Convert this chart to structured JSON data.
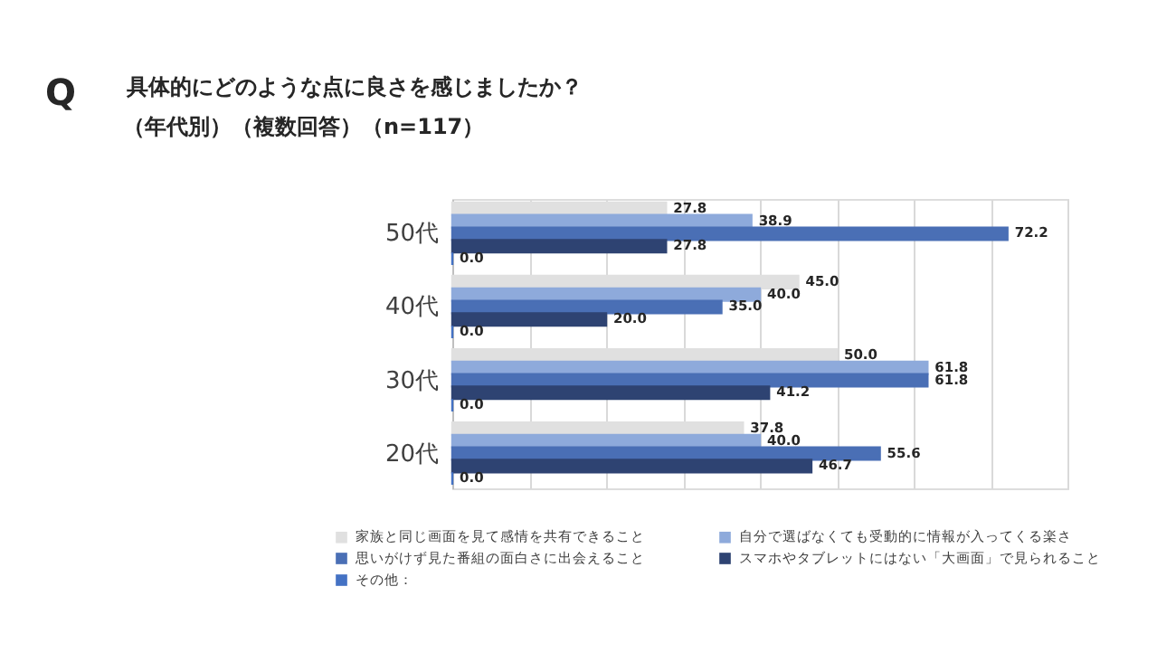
{
  "chart_data": {
    "type": "bar",
    "orientation": "horizontal",
    "title": "具体的にどのような点に良さを感じましたか？",
    "subtitle": "（年代別）（複数回答）（n=117）",
    "annotations": [
      "Q"
    ],
    "categories": [
      "50代",
      "40代",
      "30代",
      "20代"
    ],
    "series": [
      {
        "name": "家族と同じ画面を見て感情を共有できること",
        "color": "#e0e0e0",
        "values": [
          27.8,
          45.0,
          50.0,
          37.8
        ],
        "value_labels": [
          "27.8",
          "45.0",
          "50.0",
          "37.8"
        ]
      },
      {
        "name": "自分で選ばなくても受動的に情報が入ってくる楽さ",
        "color": "#8eaadb",
        "values": [
          38.9,
          40.0,
          61.8,
          40.0
        ],
        "value_labels": [
          "38.9",
          "40.0",
          "61.8",
          "40.0"
        ]
      },
      {
        "name": "思いがけず見た番組の面白さに出会えること",
        "color": "#4a6fb5",
        "values": [
          72.2,
          35.0,
          61.8,
          55.6
        ],
        "value_labels": [
          "72.2",
          "35.0",
          "61.8",
          "55.6"
        ]
      },
      {
        "name": "スマホやタブレットにはない「大画面」で見られること",
        "color": "#2e4372",
        "values": [
          27.8,
          20.0,
          41.2,
          46.7
        ],
        "value_labels": [
          "27.8",
          "20.0",
          "41.2",
          "46.7"
        ]
      },
      {
        "name": "その他：",
        "color": "#4472c4",
        "values": [
          0.0,
          0.0,
          0.0,
          0.0
        ],
        "value_labels": [
          "0.0",
          "0.0",
          "0.0",
          "0.0"
        ]
      }
    ],
    "xlim": [
      0,
      80
    ],
    "xticks": [
      {
        "value": 0,
        "label": null
      },
      {
        "value": 10,
        "label": null
      },
      {
        "value": 20,
        "label": null
      },
      {
        "value": 30,
        "label": null
      },
      {
        "value": 40,
        "label": null
      },
      {
        "value": 50,
        "label": null
      },
      {
        "value": 60,
        "label": null
      },
      {
        "value": 70,
        "label": null
      },
      {
        "value": 80,
        "label": null
      }
    ],
    "tick_labels": "y",
    "grid": "x",
    "legend": "bottom"
  }
}
